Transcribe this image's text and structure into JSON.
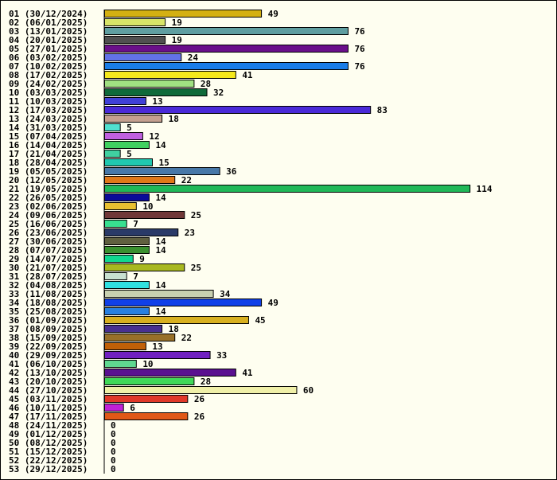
{
  "chart_data": {
    "type": "bar",
    "orientation": "horizontal",
    "title": "",
    "xlabel": "",
    "ylabel": "",
    "xlim": [
      0,
      124
    ],
    "grid": false,
    "legend": "none",
    "categories": [
      "01 (30/12/2024)",
      "02 (06/01/2025)",
      "03 (13/01/2025)",
      "04 (20/01/2025)",
      "05 (27/01/2025)",
      "06 (03/02/2025)",
      "07 (10/02/2025)",
      "08 (17/02/2025)",
      "09 (24/02/2025)",
      "10 (03/03/2025)",
      "11 (10/03/2025)",
      "12 (17/03/2025)",
      "13 (24/03/2025)",
      "14 (31/03/2025)",
      "15 (07/04/2025)",
      "16 (14/04/2025)",
      "17 (21/04/2025)",
      "18 (28/04/2025)",
      "19 (05/05/2025)",
      "20 (12/05/2025)",
      "21 (19/05/2025)",
      "22 (26/05/2025)",
      "23 (02/06/2025)",
      "24 (09/06/2025)",
      "25 (16/06/2025)",
      "26 (23/06/2025)",
      "27 (30/06/2025)",
      "28 (07/07/2025)",
      "29 (14/07/2025)",
      "30 (21/07/2025)",
      "31 (28/07/2025)",
      "32 (04/08/2025)",
      "33 (11/08/2025)",
      "34 (18/08/2025)",
      "35 (25/08/2025)",
      "36 (01/09/2025)",
      "37 (08/09/2025)",
      "38 (15/09/2025)",
      "39 (22/09/2025)",
      "40 (29/09/2025)",
      "41 (06/10/2025)",
      "42 (13/10/2025)",
      "43 (20/10/2025)",
      "44 (27/10/2025)",
      "45 (03/11/2025)",
      "46 (10/11/2025)",
      "47 (17/11/2025)",
      "48 (24/11/2025)",
      "49 (01/12/2025)",
      "50 (08/12/2025)",
      "51 (15/12/2025)",
      "52 (22/12/2025)",
      "53 (29/12/2025)"
    ],
    "values": [
      49,
      19,
      76,
      19,
      76,
      24,
      76,
      41,
      28,
      32,
      13,
      83,
      18,
      5,
      12,
      14,
      5,
      15,
      36,
      22,
      114,
      14,
      10,
      25,
      7,
      23,
      14,
      14,
      9,
      25,
      7,
      14,
      34,
      49,
      14,
      45,
      18,
      22,
      13,
      33,
      10,
      41,
      28,
      60,
      26,
      6,
      26,
      0,
      0,
      0,
      0,
      0,
      0
    ],
    "colors": [
      "#d4b012",
      "#d8e468",
      "#5f9ea0",
      "#505050",
      "#6a0f8a",
      "#6272e8",
      "#1a7de8",
      "#f5e81c",
      "#a0e082",
      "#0f6a3a",
      "#4040d8",
      "#4a2ad8",
      "#c4a090",
      "#50e0d0",
      "#c060e0",
      "#40d060",
      "#40d0a0",
      "#20c8b0",
      "#4878a8",
      "#e07818",
      "#20b858",
      "#0a0a98",
      "#e8c030",
      "#703838",
      "#38e090",
      "#2a3a68",
      "#606040",
      "#3a9030",
      "#10d890",
      "#a8b820",
      "#c8e0d0",
      "#30e0e0",
      "#c8d0b0",
      "#1040e8",
      "#2880e0",
      "#d8b020",
      "#483090",
      "#987028",
      "#c06008",
      "#7020c0",
      "#60d890",
      "#5a1090",
      "#40d858",
      "#f0f0a8",
      "#e03828",
      "#c020d8",
      "#e05818",
      "#ffffff",
      "#ffffff",
      "#ffffff",
      "#ffffff",
      "#ffffff",
      "#ffffff"
    ]
  }
}
